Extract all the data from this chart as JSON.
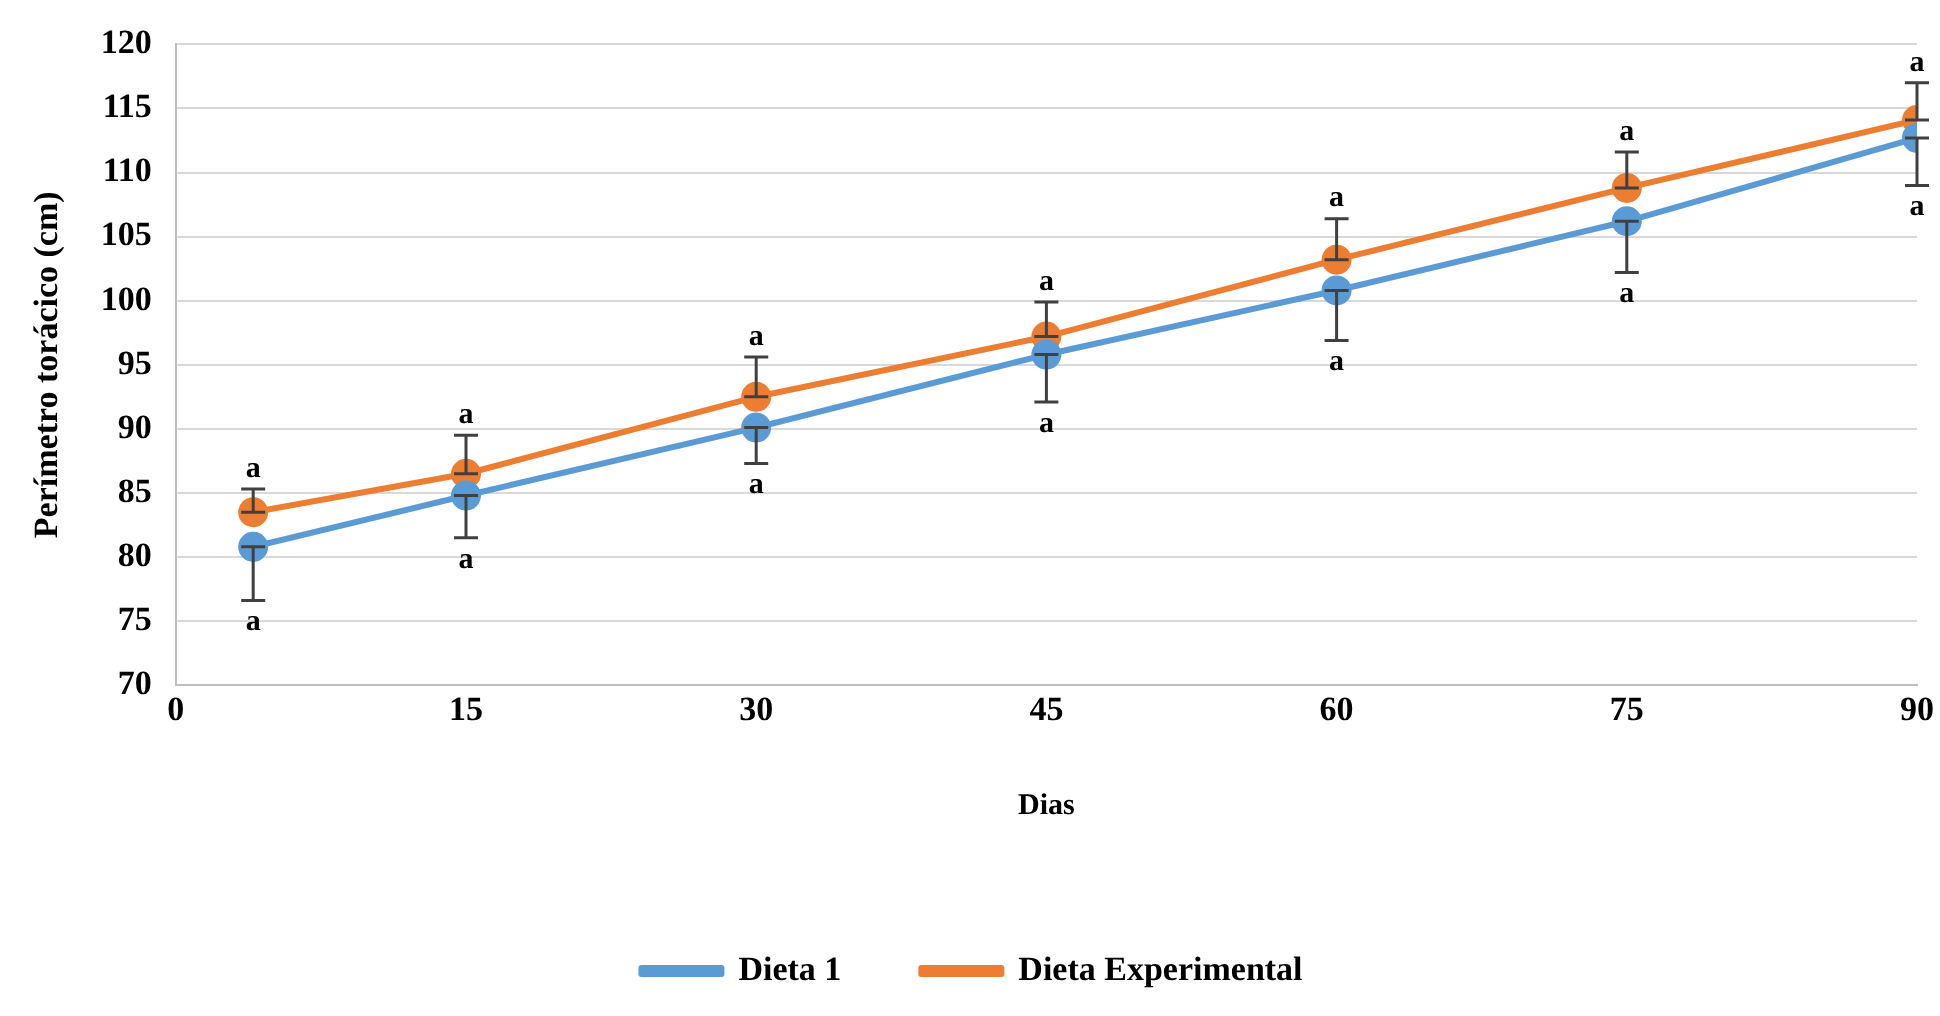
{
  "chart_data": {
    "type": "line",
    "xlabel": "Dias",
    "ylabel": "Perímetro torácico (cm)",
    "x": [
      4,
      15,
      30,
      45,
      60,
      75,
      90
    ],
    "series": [
      {
        "name": "Dieta 1",
        "color": "#5b9bd5",
        "values": [
          80.8,
          84.8,
          90.1,
          95.8,
          100.8,
          106.2,
          112.7
        ],
        "errors": [
          [
            76.6,
            80.8
          ],
          [
            81.5,
            84.8
          ],
          [
            87.3,
            90.1
          ],
          [
            92.1,
            95.8
          ],
          [
            96.9,
            100.8
          ],
          [
            102.2,
            106.2
          ],
          [
            109.0,
            112.7
          ]
        ]
      },
      {
        "name": "Dieta Experimental",
        "color": "#ed7d31",
        "values": [
          83.5,
          86.5,
          92.5,
          97.2,
          103.2,
          108.8,
          114.1
        ],
        "errors": [
          [
            83.5,
            85.3
          ],
          [
            86.5,
            89.5
          ],
          [
            92.5,
            95.6
          ],
          [
            97.2,
            99.9
          ],
          [
            103.2,
            106.4
          ],
          [
            108.8,
            111.6
          ],
          [
            114.1,
            117.0
          ]
        ]
      }
    ],
    "xlim": [
      0,
      90
    ],
    "xticks": [
      0,
      15,
      30,
      45,
      60,
      75,
      90
    ],
    "ylim": [
      70,
      120
    ],
    "yticks": [
      70,
      75,
      80,
      85,
      90,
      95,
      100,
      105,
      110,
      115,
      120
    ],
    "grid": "y",
    "legend": "bottom",
    "marker": "circle",
    "line_style": "solid",
    "annotations": [
      {
        "text": "a",
        "x": 4,
        "y": 76.6
      },
      {
        "text": "a",
        "x": 15,
        "y": 81.5
      },
      {
        "text": "a",
        "x": 30,
        "y": 87.3
      },
      {
        "text": "a",
        "x": 45,
        "y": 92.1
      },
      {
        "text": "a",
        "x": 60,
        "y": 96.9
      },
      {
        "text": "a",
        "x": 75,
        "y": 102.2
      },
      {
        "text": "a",
        "x": 90,
        "y": 109.0
      },
      {
        "text": "a",
        "x": 4,
        "y": 85.3
      },
      {
        "text": "a",
        "x": 15,
        "y": 89.5
      },
      {
        "text": "a",
        "x": 30,
        "y": 95.6
      },
      {
        "text": "a",
        "x": 45,
        "y": 99.9
      },
      {
        "text": "a",
        "x": 60,
        "y": 106.4
      },
      {
        "text": "a",
        "x": 75,
        "y": 111.6
      },
      {
        "text": "a",
        "x": 90,
        "y": 117.0
      }
    ]
  }
}
